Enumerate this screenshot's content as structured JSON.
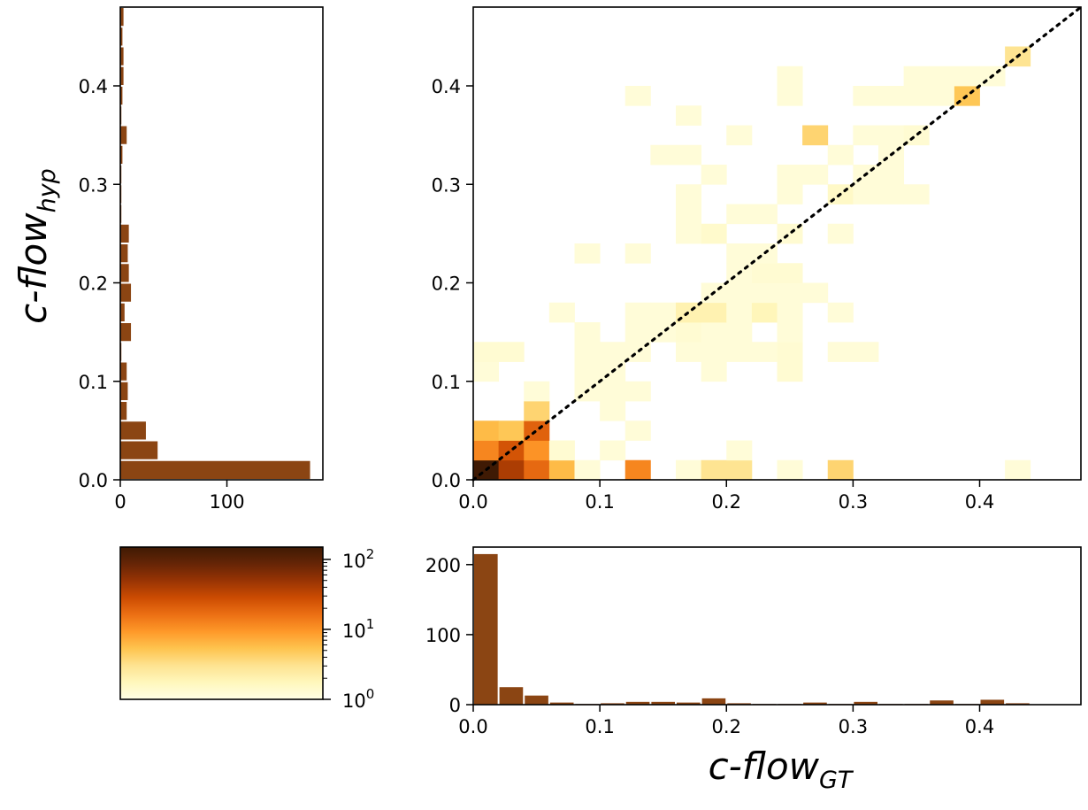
{
  "chart_data": [
    {
      "name": "joint-heatmap",
      "type": "heatmap",
      "xlabel": "c-flow",
      "xlabel_sub": "GT",
      "ylabel": "c-flow",
      "ylabel_sub": "hyp",
      "xlim": [
        0,
        0.48
      ],
      "ylim": [
        0,
        0.48
      ],
      "bin_width": 0.02,
      "xticks": [
        0.0,
        0.1,
        0.2,
        0.3,
        0.4
      ],
      "yticks": [
        0.0,
        0.1,
        0.2,
        0.3,
        0.4
      ],
      "tick_labels": [
        "0.0",
        "0.1",
        "0.2",
        "0.3",
        "0.4"
      ],
      "reference_line": "y = x (dotted)",
      "color_scale": "log",
      "cells": [
        [
          0,
          0,
          150
        ],
        [
          1,
          0,
          40
        ],
        [
          2,
          0,
          18
        ],
        [
          3,
          0,
          6
        ],
        [
          4,
          0,
          1.2
        ],
        [
          6,
          0,
          12
        ],
        [
          8,
          0,
          1.2
        ],
        [
          9,
          0,
          3
        ],
        [
          10,
          0,
          3
        ],
        [
          12,
          0,
          1.2
        ],
        [
          14,
          0,
          4
        ],
        [
          21,
          0,
          1.2
        ],
        [
          0,
          1,
          12
        ],
        [
          1,
          1,
          25
        ],
        [
          2,
          1,
          10
        ],
        [
          3,
          1,
          1.3
        ],
        [
          5,
          1,
          1.2
        ],
        [
          10,
          1,
          1.2
        ],
        [
          0,
          2,
          6
        ],
        [
          1,
          2,
          5
        ],
        [
          2,
          2,
          20
        ],
        [
          6,
          2,
          1.2
        ],
        [
          2,
          3,
          4
        ],
        [
          5,
          3,
          1.2
        ],
        [
          2,
          4,
          1.2
        ],
        [
          4,
          4,
          1.2
        ],
        [
          5,
          4,
          1.2
        ],
        [
          6,
          4,
          1.2
        ],
        [
          0,
          5,
          1.2
        ],
        [
          4,
          5,
          1.2
        ],
        [
          5,
          5,
          1.2
        ],
        [
          9,
          5,
          1.2
        ],
        [
          12,
          5,
          1.3
        ],
        [
          0,
          6,
          1.3
        ],
        [
          1,
          6,
          1.3
        ],
        [
          4,
          6,
          1.2
        ],
        [
          5,
          6,
          1.2
        ],
        [
          6,
          6,
          1.2
        ],
        [
          8,
          6,
          1.2
        ],
        [
          9,
          6,
          1.2
        ],
        [
          10,
          6,
          1.2
        ],
        [
          11,
          6,
          1.2
        ],
        [
          12,
          6,
          1.3
        ],
        [
          14,
          6,
          1.2
        ],
        [
          15,
          6,
          1.2
        ],
        [
          4,
          7,
          1.2
        ],
        [
          6,
          7,
          1.2
        ],
        [
          7,
          7,
          1.2
        ],
        [
          8,
          7,
          1.3
        ],
        [
          9,
          7,
          1.2
        ],
        [
          10,
          7,
          1.2
        ],
        [
          12,
          7,
          1.2
        ],
        [
          3,
          8,
          1.2
        ],
        [
          6,
          8,
          1.2
        ],
        [
          7,
          8,
          1.2
        ],
        [
          8,
          8,
          2
        ],
        [
          9,
          8,
          2
        ],
        [
          10,
          8,
          1.2
        ],
        [
          11,
          8,
          1.8
        ],
        [
          12,
          8,
          1.2
        ],
        [
          14,
          8,
          1.2
        ],
        [
          9,
          9,
          1.2
        ],
        [
          10,
          9,
          1.2
        ],
        [
          11,
          9,
          1.2
        ],
        [
          12,
          9,
          1.2
        ],
        [
          13,
          9,
          1.2
        ],
        [
          10,
          10,
          1.2
        ],
        [
          11,
          10,
          1.3
        ],
        [
          12,
          10,
          1.3
        ],
        [
          4,
          11,
          1.2
        ],
        [
          6,
          11,
          1.2
        ],
        [
          10,
          11,
          1.2
        ],
        [
          11,
          11,
          1.2
        ],
        [
          8,
          12,
          1.2
        ],
        [
          9,
          12,
          1.4
        ],
        [
          12,
          12,
          1.3
        ],
        [
          14,
          12,
          1.2
        ],
        [
          8,
          13,
          1.2
        ],
        [
          10,
          13,
          1.2
        ],
        [
          11,
          13,
          1.2
        ],
        [
          8,
          14,
          1.2
        ],
        [
          12,
          14,
          1.2
        ],
        [
          14,
          14,
          1.5
        ],
        [
          15,
          14,
          1.2
        ],
        [
          16,
          14,
          1.2
        ],
        [
          17,
          14,
          1.2
        ],
        [
          9,
          15,
          1.2
        ],
        [
          12,
          15,
          1.2
        ],
        [
          13,
          15,
          1.2
        ],
        [
          15,
          15,
          1.2
        ],
        [
          16,
          15,
          1.2
        ],
        [
          7,
          16,
          1.2
        ],
        [
          8,
          16,
          1.2
        ],
        [
          14,
          16,
          1.2
        ],
        [
          16,
          16,
          1.2
        ],
        [
          10,
          17,
          1.2
        ],
        [
          13,
          17,
          4
        ],
        [
          15,
          17,
          1.2
        ],
        [
          16,
          17,
          1.2
        ],
        [
          17,
          17,
          1.3
        ],
        [
          8,
          18,
          1.2
        ],
        [
          6,
          19,
          1.2
        ],
        [
          12,
          19,
          1.2
        ],
        [
          15,
          19,
          1.2
        ],
        [
          16,
          19,
          1.2
        ],
        [
          17,
          19,
          1.2
        ],
        [
          18,
          19,
          1.2
        ],
        [
          19,
          19,
          5
        ],
        [
          12,
          20,
          1.2
        ],
        [
          17,
          20,
          1.2
        ],
        [
          18,
          20,
          1.2
        ],
        [
          19,
          20,
          1.2
        ],
        [
          20,
          20,
          1.2
        ],
        [
          21,
          21,
          3
        ]
      ]
    },
    {
      "name": "y-marginal-histogram",
      "type": "bar",
      "orientation": "horizontal",
      "bin_width": 0.02,
      "bin_starts": [
        0.0,
        0.02,
        0.04,
        0.06,
        0.08,
        0.1,
        0.12,
        0.14,
        0.16,
        0.18,
        0.2,
        0.22,
        0.24,
        0.26,
        0.28,
        0.3,
        0.32,
        0.34,
        0.36,
        0.38,
        0.4,
        0.42,
        0.44,
        0.46
      ],
      "values": [
        178,
        35,
        24,
        6,
        7,
        6,
        1,
        10,
        4,
        10,
        8,
        7,
        8,
        1,
        1,
        1,
        2,
        6,
        1,
        2,
        3,
        3,
        2,
        3
      ],
      "xlim": [
        0,
        190
      ],
      "ylim": [
        0,
        0.48
      ],
      "xticks": [
        0,
        100
      ],
      "xtick_labels": [
        "0",
        "100"
      ],
      "yticks": [
        0.0,
        0.1,
        0.2,
        0.3,
        0.4
      ],
      "ytick_labels": [
        "0.0",
        "0.1",
        "0.2",
        "0.3",
        "0.4"
      ]
    },
    {
      "name": "x-marginal-histogram",
      "type": "bar",
      "bin_width": 0.02,
      "bin_starts": [
        0.0,
        0.02,
        0.04,
        0.06,
        0.08,
        0.1,
        0.12,
        0.14,
        0.16,
        0.18,
        0.2,
        0.22,
        0.24,
        0.26,
        0.28,
        0.3,
        0.32,
        0.34,
        0.36,
        0.38,
        0.4,
        0.42,
        0.44,
        0.46
      ],
      "values": [
        215,
        25,
        13,
        3,
        1,
        2,
        4,
        4,
        3,
        9,
        2,
        1,
        1,
        3,
        1,
        4,
        1,
        1,
        6,
        1,
        7,
        2,
        0,
        0
      ],
      "xlim": [
        0,
        0.48
      ],
      "ylim": [
        0,
        225
      ],
      "xticks": [
        0.0,
        0.1,
        0.2,
        0.3,
        0.4
      ],
      "xtick_labels": [
        "0.0",
        "0.1",
        "0.2",
        "0.3",
        "0.4"
      ],
      "yticks": [
        0,
        100,
        200
      ],
      "ytick_labels": [
        "0",
        "100",
        "200"
      ]
    },
    {
      "name": "colorbar",
      "type": "colorbar",
      "scale": "log",
      "range": [
        1,
        150
      ],
      "tick_labels": [
        {
          "value": 1,
          "base": "10",
          "exp": "0"
        },
        {
          "value": 10,
          "base": "10",
          "exp": "1"
        },
        {
          "value": 100,
          "base": "10",
          "exp": "2"
        }
      ]
    }
  ],
  "colors": {
    "bar_fill": "#8b4513",
    "colormap": [
      "#ffffe5",
      "#fff7bc",
      "#fee391",
      "#fec44f",
      "#fe9929",
      "#ec7014",
      "#cc4c02",
      "#993404",
      "#662506",
      "#3f1a04"
    ]
  }
}
